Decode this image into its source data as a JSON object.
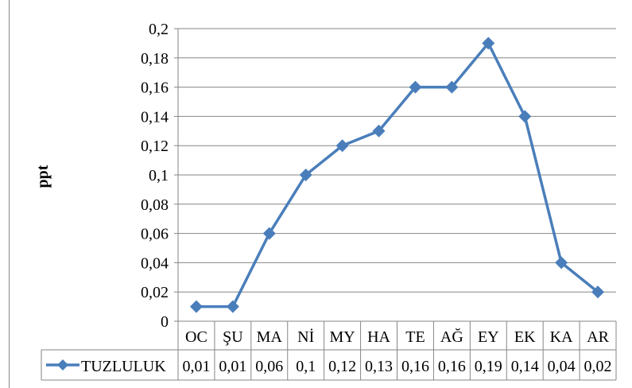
{
  "chart_data": {
    "type": "line",
    "categories": [
      "OC",
      "ŞU",
      "MA",
      "Nİ",
      "MY",
      "HA",
      "TE",
      "AĞ",
      "EY",
      "EK",
      "KA",
      "AR"
    ],
    "series": [
      {
        "name": "TUZLULUK",
        "values": [
          0.01,
          0.01,
          0.06,
          0.1,
          0.12,
          0.13,
          0.16,
          0.16,
          0.19,
          0.14,
          0.04,
          0.02
        ],
        "value_labels": [
          "0,01",
          "0,01",
          "0,06",
          "0,1",
          "0,12",
          "0,13",
          "0,16",
          "0,16",
          "0,19",
          "0,14",
          "0,04",
          "0,02"
        ],
        "color": "#4a7ebb",
        "marker": "diamond"
      }
    ],
    "ylabel": "ppt",
    "xlabel": "",
    "title": "",
    "ylim": [
      0,
      0.2
    ],
    "yticks": [
      0,
      0.02,
      0.04,
      0.06,
      0.08,
      0.1,
      0.12,
      0.14,
      0.16,
      0.18,
      0.2
    ],
    "ytick_labels": [
      "0",
      "0,02",
      "0,04",
      "0,06",
      "0,08",
      "0,1",
      "0,12",
      "0,14",
      "0,16",
      "0,18",
      "0,2"
    ],
    "grid": true,
    "legend": "data-table-left",
    "data_table": true
  }
}
